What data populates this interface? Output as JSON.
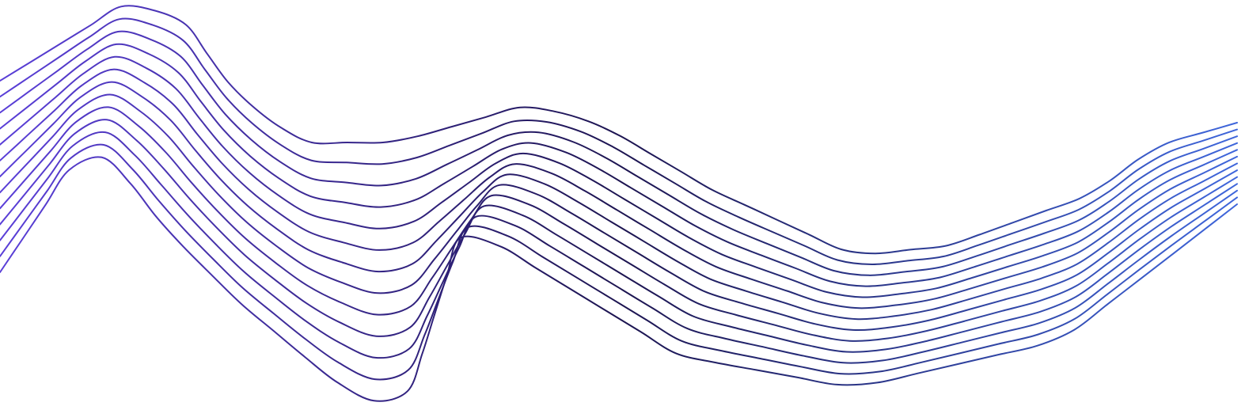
{
  "artwork": {
    "kind": "decorative-wave-lines",
    "line_count": 13,
    "colors": {
      "background": "#ffffff",
      "start": "#5a3fd8",
      "middle": "#1c1450",
      "end": "#3f67dd"
    }
  }
}
